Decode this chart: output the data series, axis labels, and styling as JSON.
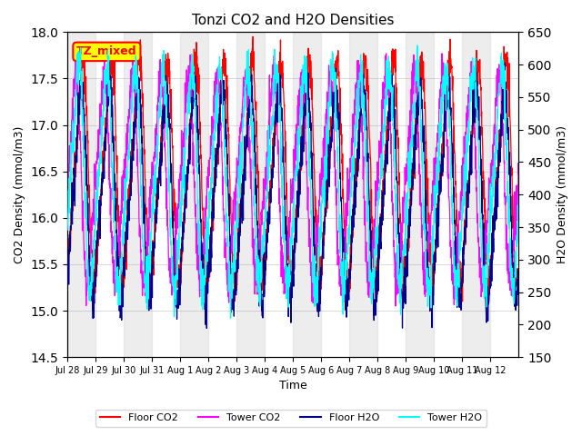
{
  "title": "Tonzi CO2 and H2O Densities",
  "xlabel": "Time",
  "ylabel_left": "CO2 Density (mmol/m3)",
  "ylabel_right": "H2O Density (mmol/m3)",
  "ylim_left": [
    14.5,
    18.0
  ],
  "ylim_right": [
    150,
    650
  ],
  "yticks_left": [
    14.5,
    15.0,
    15.5,
    16.0,
    16.5,
    17.0,
    17.5,
    18.0
  ],
  "yticks_right": [
    150,
    200,
    250,
    300,
    350,
    400,
    450,
    500,
    550,
    600,
    650
  ],
  "xtick_labels": [
    "Jul 28",
    "Jul 29",
    "Jul 30",
    "Jul 31",
    "Aug 1",
    "Aug 2",
    "Aug 3",
    "Aug 4",
    "Aug 5",
    "Aug 6",
    "Aug 7",
    "Aug 8",
    "Aug 9",
    "Aug 10",
    "Aug 11",
    "Aug 12"
  ],
  "annotation_text": "TZ_mixed",
  "annotation_color": "#ff0000",
  "annotation_bg": "#ffff00",
  "colors": {
    "floor_co2": "#ff0000",
    "tower_co2": "#ff00ff",
    "floor_h2o": "#00008b",
    "tower_h2o": "#00ffff"
  },
  "legend_labels": [
    "Floor CO2",
    "Tower CO2",
    "Floor H2O",
    "Tower H2O"
  ],
  "band_color": "#d3d3d3",
  "band_alpha": 0.4,
  "num_points": 2000,
  "period_hours": 24,
  "co2_mean": 16.5,
  "co2_amp": 1.1,
  "co2_noise": 0.12,
  "h2o_mean": 400,
  "h2o_amp": 150,
  "h2o_noise": 18,
  "phase_tower_co2": 0.25,
  "phase_floor_h2o": 0.05,
  "phase_tower_h2o": 0.15
}
